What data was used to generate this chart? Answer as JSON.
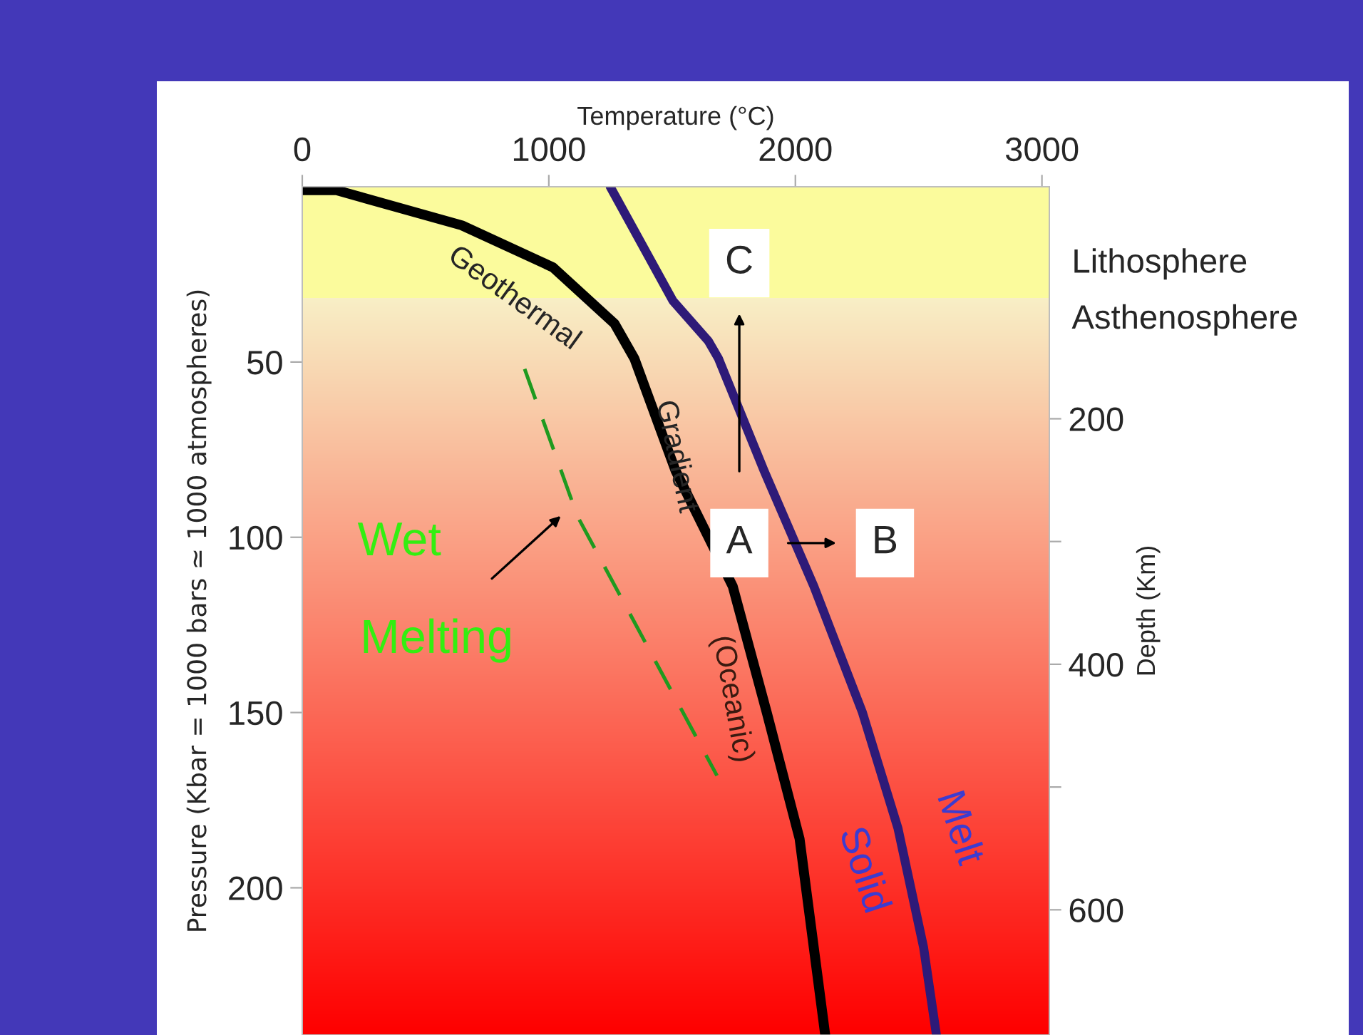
{
  "chart_data": {
    "type": "line",
    "xlabel": "Temperature (°C)",
    "ylabel": "Pressure (Kbar = 1000 bars ≃ 1000 atmospheres)",
    "y2label": "Depth (Km)",
    "series": [
      {
        "color": "#000000",
        "line_style": "solid",
        "x": [
          0,
          139,
          647,
          1017,
          1266,
          1347,
          1514,
          1746,
          1884,
          2017,
          2121
        ],
        "values": [
          1,
          1,
          11,
          23,
          39,
          49,
          81,
          114,
          150,
          186,
          242
        ]
      },
      {
        "color": "#2e1a78",
        "line_style": "solid",
        "x": [
          1249,
          1503,
          1647,
          1688,
          1873,
          2075,
          2272,
          2416,
          2520,
          2572
        ],
        "values": [
          0,
          32.5,
          44,
          49,
          81,
          114,
          150,
          183,
          217,
          242
        ]
      },
      {
        "color": "#1f9a1f",
        "line_style": "dashed",
        "x": [
          902,
          1116,
          1682
        ],
        "values": [
          52,
          94,
          168
        ]
      }
    ],
    "xlim": [
      0,
      3030
    ],
    "xticks": [
      0,
      1000,
      2000,
      3000
    ],
    "ylim": [
      242,
      0
    ],
    "yticks": [
      50,
      100,
      150,
      200
    ],
    "y2lim": [
      702,
      11
    ],
    "y2ticks": [
      200,
      {
        "value": 300,
        "label": null
      },
      400,
      {
        "value": 500,
        "label": null
      },
      600
    ],
    "bands": [
      {
        "axis": "y",
        "from": 0,
        "to": 32,
        "label": "Lithosphere",
        "color": "#fbfb9c"
      },
      {
        "axis": "y",
        "from": 32,
        "to": 242,
        "label": "Asthenosphere",
        "color": [
          "#f8efc6",
          "#ff0000"
        ]
      }
    ],
    "annotations": [
      "Geothermal",
      "Gradient",
      "(Oceanic)",
      "Melt",
      "Solid",
      "Wet",
      "Melting",
      "A",
      "B",
      "C"
    ],
    "grid": false,
    "legend": false
  }
}
